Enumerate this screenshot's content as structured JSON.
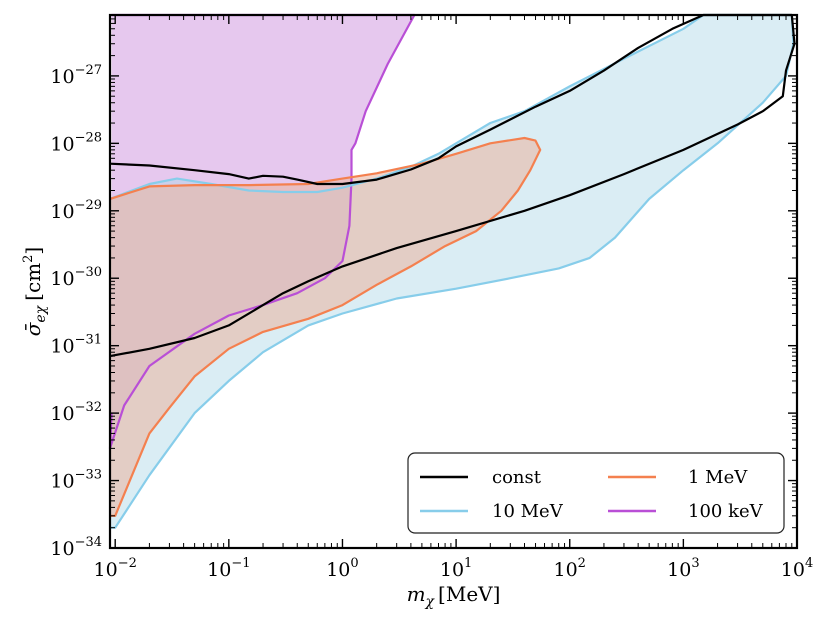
{
  "chart_data": {
    "type": "area",
    "xscale": "log",
    "yscale": "log",
    "xlim": [
      0.009,
      10000
    ],
    "ylim": [
      1e-34,
      8e-27
    ],
    "xlabel": {
      "base": "m",
      "sub": "χ",
      "unit": "[MeV]"
    },
    "ylabel": {
      "base": "σ̄",
      "sub": "eχ",
      "unit_pre": "[cm",
      "unit_sup": "2",
      "unit_post": "]"
    },
    "x_ticks": [
      {
        "base": "10",
        "exp": "−2",
        "value": 0.01
      },
      {
        "base": "10",
        "exp": "−1",
        "value": 0.1
      },
      {
        "base": "10",
        "exp": "0",
        "value": 1
      },
      {
        "base": "10",
        "exp": "1",
        "value": 10
      },
      {
        "base": "10",
        "exp": "2",
        "value": 100
      },
      {
        "base": "10",
        "exp": "3",
        "value": 1000
      },
      {
        "base": "10",
        "exp": "4",
        "value": 10000
      }
    ],
    "y_ticks": [
      {
        "base": "10",
        "exp": "−34",
        "value": 1e-34
      },
      {
        "base": "10",
        "exp": "−33",
        "value": 1e-33
      },
      {
        "base": "10",
        "exp": "−32",
        "value": 1e-32
      },
      {
        "base": "10",
        "exp": "−31",
        "value": 1e-31
      },
      {
        "base": "10",
        "exp": "−30",
        "value": 1e-30
      },
      {
        "base": "10",
        "exp": "−29",
        "value": 1e-29
      },
      {
        "base": "10",
        "exp": "−28",
        "value": 1e-28
      },
      {
        "base": "10",
        "exp": "−27",
        "value": 1e-27
      }
    ],
    "series": [
      {
        "name": "100 keV",
        "legend_text": "100 keV",
        "color": "#b94fd6",
        "fill": "#e6c8ee",
        "fill_opacity": 1,
        "points": [
          [
            0.0093,
            1e-32
          ],
          [
            0.009,
            3e-33
          ],
          [
            0.0095,
            4e-33
          ],
          [
            0.012,
            1.3e-32
          ],
          [
            0.02,
            5e-32
          ],
          [
            0.05,
            1.5e-31
          ],
          [
            0.1,
            2.8e-31
          ],
          [
            0.2,
            4e-31
          ],
          [
            0.4,
            6e-31
          ],
          [
            0.7,
            1e-30
          ],
          [
            1.0,
            1.8e-30
          ],
          [
            1.15,
            6e-30
          ],
          [
            1.2,
            3e-29
          ],
          [
            1.2,
            8e-29
          ],
          [
            1.3,
            1e-28
          ],
          [
            1.6,
            3e-28
          ],
          [
            2.5,
            1.5e-27
          ],
          [
            4.3,
            8e-27
          ],
          [
            0.0093,
            8e-27
          ]
        ]
      },
      {
        "name": "10 MeV",
        "legend_text": "10 MeV",
        "color": "#87cdea",
        "fill": "#add8e6",
        "fill_opacity": 0.45,
        "points": [
          [
            0.009,
            1.5e-29
          ],
          [
            0.02,
            2.5e-29
          ],
          [
            0.035,
            3e-29
          ],
          [
            0.07,
            2.5e-29
          ],
          [
            0.15,
            2e-29
          ],
          [
            0.3,
            1.9e-29
          ],
          [
            0.6,
            1.9e-29
          ],
          [
            1.0,
            2.2e-29
          ],
          [
            2.0,
            3e-29
          ],
          [
            4.0,
            4.5e-29
          ],
          [
            7.0,
            7e-29
          ],
          [
            10,
            1e-28
          ],
          [
            20,
            2e-28
          ],
          [
            40,
            3e-28
          ],
          [
            100,
            7e-28
          ],
          [
            300,
            1.8e-27
          ],
          [
            1000,
            5e-27
          ],
          [
            1500,
            8e-27
          ],
          [
            9000,
            8e-27
          ],
          [
            9300,
            3e-27
          ],
          [
            8000,
            1e-27
          ],
          [
            5000,
            4e-28
          ],
          [
            2000,
            1e-28
          ],
          [
            1000,
            4e-29
          ],
          [
            500,
            1.5e-29
          ],
          [
            250,
            4e-30
          ],
          [
            150,
            2e-30
          ],
          [
            80,
            1.4e-30
          ],
          [
            30,
            1e-30
          ],
          [
            10,
            7e-31
          ],
          [
            3,
            5e-31
          ],
          [
            1,
            3e-31
          ],
          [
            0.5,
            2e-31
          ],
          [
            0.2,
            8e-32
          ],
          [
            0.1,
            3e-32
          ],
          [
            0.05,
            1e-32
          ],
          [
            0.02,
            1.2e-33
          ],
          [
            0.01,
            2e-34
          ],
          [
            0.009,
            2e-34
          ]
        ]
      },
      {
        "name": "1 MeV",
        "legend_text": "1 MeV",
        "color": "#f4804f",
        "fill": "#e9b7a5",
        "fill_opacity": 0.6,
        "points": [
          [
            0.009,
            1.5e-29
          ],
          [
            0.02,
            2.3e-29
          ],
          [
            0.05,
            2.4e-29
          ],
          [
            0.15,
            2.4e-29
          ],
          [
            0.5,
            2.5e-29
          ],
          [
            1.0,
            3e-29
          ],
          [
            2.0,
            3.6e-29
          ],
          [
            5.0,
            5e-29
          ],
          [
            10,
            7e-29
          ],
          [
            20,
            1e-28
          ],
          [
            40,
            1.2e-28
          ],
          [
            50,
            1.1e-28
          ],
          [
            55,
            8e-29
          ],
          [
            45,
            4e-29
          ],
          [
            35,
            2e-29
          ],
          [
            25,
            1e-29
          ],
          [
            15,
            5e-30
          ],
          [
            8,
            3e-30
          ],
          [
            4,
            1.5e-30
          ],
          [
            2,
            8e-31
          ],
          [
            1,
            4e-31
          ],
          [
            0.5,
            2.5e-31
          ],
          [
            0.2,
            1.6e-31
          ],
          [
            0.1,
            9e-32
          ],
          [
            0.05,
            3.5e-32
          ],
          [
            0.03,
            1.2e-32
          ],
          [
            0.02,
            5e-33
          ],
          [
            0.01,
            3e-34
          ],
          [
            0.009,
            3e-34
          ]
        ]
      },
      {
        "name": "const",
        "legend_text": "const",
        "color": "#000000",
        "fill": "none",
        "fill_opacity": 0,
        "points": [
          [
            0.009,
            5e-29
          ],
          [
            0.02,
            4.7e-29
          ],
          [
            0.05,
            4e-29
          ],
          [
            0.1,
            3.5e-29
          ],
          [
            0.15,
            3e-29
          ],
          [
            0.2,
            3.3e-29
          ],
          [
            0.3,
            3.2e-29
          ],
          [
            0.4,
            2.9e-29
          ],
          [
            0.6,
            2.5e-29
          ],
          [
            1,
            2.5e-29
          ],
          [
            2,
            2.9e-29
          ],
          [
            4,
            4.1e-29
          ],
          [
            7,
            6e-29
          ],
          [
            10,
            9e-29
          ],
          [
            20,
            1.6e-28
          ],
          [
            50,
            3.5e-28
          ],
          [
            100,
            6e-28
          ],
          [
            200,
            1.2e-27
          ],
          [
            400,
            2.6e-27
          ],
          [
            800,
            5e-27
          ],
          [
            1500,
            8e-27
          ],
          [
            9000,
            8e-27
          ],
          [
            9500,
            3e-27
          ],
          [
            8000,
            1.2e-27
          ],
          [
            7500,
            5e-28
          ],
          [
            5000,
            3e-28
          ],
          [
            3000,
            1.9e-28
          ],
          [
            1000,
            8e-29
          ],
          [
            300,
            3.5e-29
          ],
          [
            100,
            1.7e-29
          ],
          [
            40,
            1e-29
          ],
          [
            10,
            5e-30
          ],
          [
            3,
            2.8e-30
          ],
          [
            1,
            1.5e-30
          ],
          [
            0.5,
            9e-31
          ],
          [
            0.3,
            6e-31
          ],
          [
            0.2,
            4e-31
          ],
          [
            0.1,
            2e-31
          ],
          [
            0.05,
            1.3e-31
          ],
          [
            0.02,
            9e-32
          ],
          [
            0.009,
            7e-32
          ]
        ]
      }
    ],
    "legend": {
      "position": "lower right",
      "order": [
        "const",
        "1 MeV",
        "10 MeV",
        "100 keV"
      ]
    }
  }
}
